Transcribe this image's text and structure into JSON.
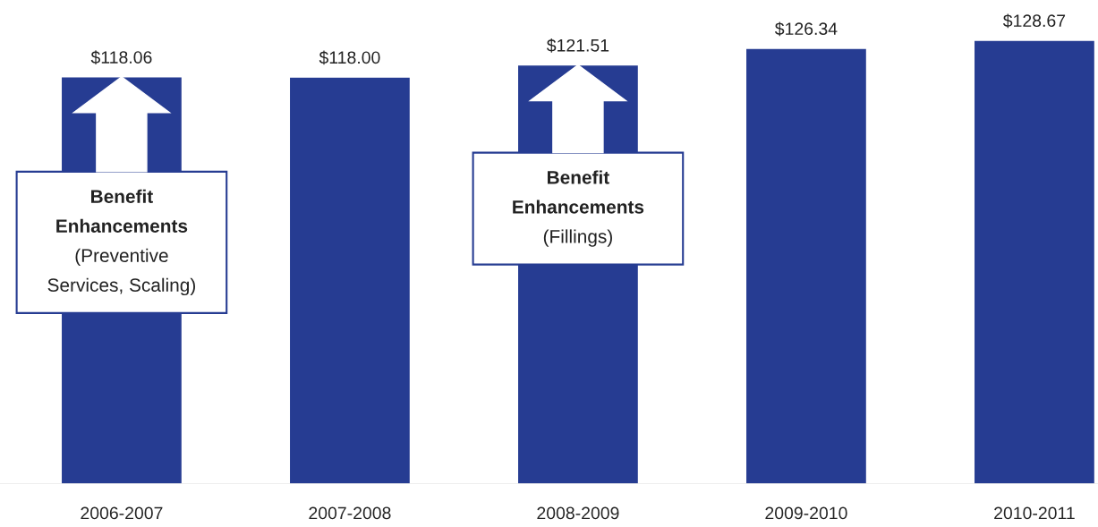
{
  "chart_data": {
    "type": "bar",
    "categories": [
      "2006-2007",
      "2007-2008",
      "2008-2009",
      "2009-2010",
      "2010-2011"
    ],
    "values": [
      118.06,
      118.0,
      121.51,
      126.34,
      128.67
    ],
    "value_labels": [
      "$118.06",
      "$118.00",
      "$121.51",
      "$126.34",
      "$128.67"
    ],
    "color": "#263c92",
    "annotations": [
      "Benefit\nEnhancements\n(Preventive\nServices, Scaling)",
      "Benefit\nEnhancements\n(Fillings)"
    ]
  }
}
